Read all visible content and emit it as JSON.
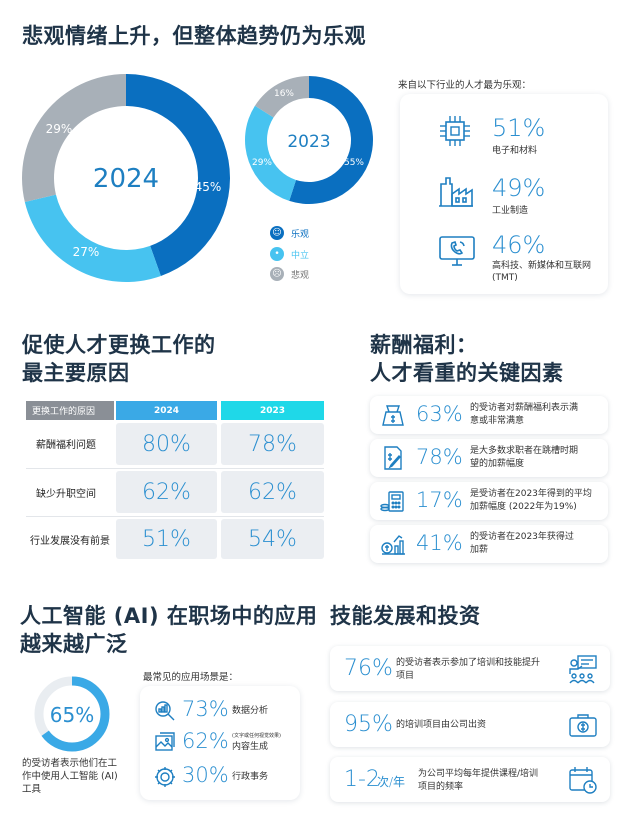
{
  "section1": {
    "title": "悲观情绪上升，但整体趋势仍为乐观",
    "chart_2024": {
      "year": "2024",
      "optimistic": "45%",
      "neutral": "27%",
      "pessimistic": "29%"
    },
    "chart_2023": {
      "year": "2023",
      "optimistic": "55%",
      "neutral": "29%",
      "pessimistic": "16%"
    },
    "legend": [
      {
        "label": "乐观",
        "icon": "smile-icon"
      },
      {
        "label": "中立",
        "icon": "neutral-face-icon"
      },
      {
        "label": "悲观",
        "icon": "sad-face-icon"
      }
    ],
    "industries_heading": "来自以下行业的人才最为乐观：",
    "industries": [
      {
        "pct": "51%",
        "label": "电子和材料",
        "icon": "chip-icon"
      },
      {
        "pct": "49%",
        "label": "工业制造",
        "icon": "factory-icon"
      },
      {
        "pct": "46%",
        "label": "高科技、新媒体和互联网",
        "label2": "(TMT)",
        "icon": "monitor-phone-icon"
      }
    ],
    "chart_data": [
      {
        "type": "pie",
        "title": "2024",
        "categories": [
          "乐观",
          "中立",
          "悲观"
        ],
        "values": [
          45,
          27,
          29
        ]
      },
      {
        "type": "pie",
        "title": "2023",
        "categories": [
          "乐观",
          "中立",
          "悲观"
        ],
        "values": [
          55,
          29,
          16
        ]
      }
    ],
    "colors": {
      "optimistic": "#0a6fc0",
      "neutral": "#47c3f0",
      "pessimistic": "#a8b0b8"
    }
  },
  "section2": {
    "title_line1": "促使人才更换工作的",
    "title_line2": "最主要原因",
    "header_label": "更换工作的原因",
    "col_2024": "2024",
    "col_2023": "2023",
    "rows": [
      {
        "label": "薪酬福利问题",
        "v2024": "80%",
        "v2023": "78%"
      },
      {
        "label": "缺少升职空间",
        "v2024": "62%",
        "v2023": "62%"
      },
      {
        "label": "行业发展没有前景",
        "v2024": "51%",
        "v2023": "54%"
      }
    ]
  },
  "section3": {
    "title_line1": "薪酬福利：",
    "title_line2": "人才看重的关键因素",
    "items": [
      {
        "pct": "63%",
        "line1": "的受访者对薪酬福利表示满",
        "line2": "意或非常满意",
        "icon": "money-bag-icon"
      },
      {
        "pct": "78%",
        "line1": "是大多数求职者在跳槽时期",
        "line2": "望的加薪幅度",
        "icon": "document-money-icon"
      },
      {
        "pct": "17%",
        "line1": "是受访者在2023年得到的平均",
        "line2": "加薪幅度 (2022年为19%)",
        "icon": "calculator-coins-icon"
      },
      {
        "pct": "41%",
        "line1": "的受访者在2023年获得过",
        "line2": "加薪",
        "icon": "growth-chart-icon"
      }
    ]
  },
  "section4": {
    "title_line1": "人工智能 (AI) 在职场中的应用",
    "title_line2": "越来越广泛",
    "donut_value": "65%",
    "donut_fraction": 0.65,
    "desc_line1": "的受访者表示他们在工",
    "desc_line2": "作中使用人工智能 (AI)",
    "desc_line3": "工具",
    "scenes_heading": "最常见的应用场景是：",
    "scenes": [
      {
        "pct": "73%",
        "label": "数据分析",
        "note": "",
        "icon": "data-search-icon"
      },
      {
        "pct": "62%",
        "label": "内容生成",
        "note": "(文字或任何视觉效果)",
        "icon": "image-content-icon"
      },
      {
        "pct": "30%",
        "label": "行政事务",
        "note": "",
        "icon": "gear-people-icon"
      }
    ]
  },
  "section5": {
    "title": "技能发展和投资",
    "items": [
      {
        "value": "76%",
        "unit": "",
        "line1": "的受访者表示参加了培训和技能提升",
        "line2": "项目",
        "icon": "training-icon"
      },
      {
        "value": "95%",
        "unit": "",
        "line1": "的培训项目由公司出资",
        "line2": "",
        "icon": "briefcase-money-icon"
      },
      {
        "value": "1-2",
        "unit": "次/年",
        "line1": "为公司平均每年提供课程/培训",
        "line2": "项目的频率",
        "icon": "calendar-clock-icon"
      }
    ]
  }
}
